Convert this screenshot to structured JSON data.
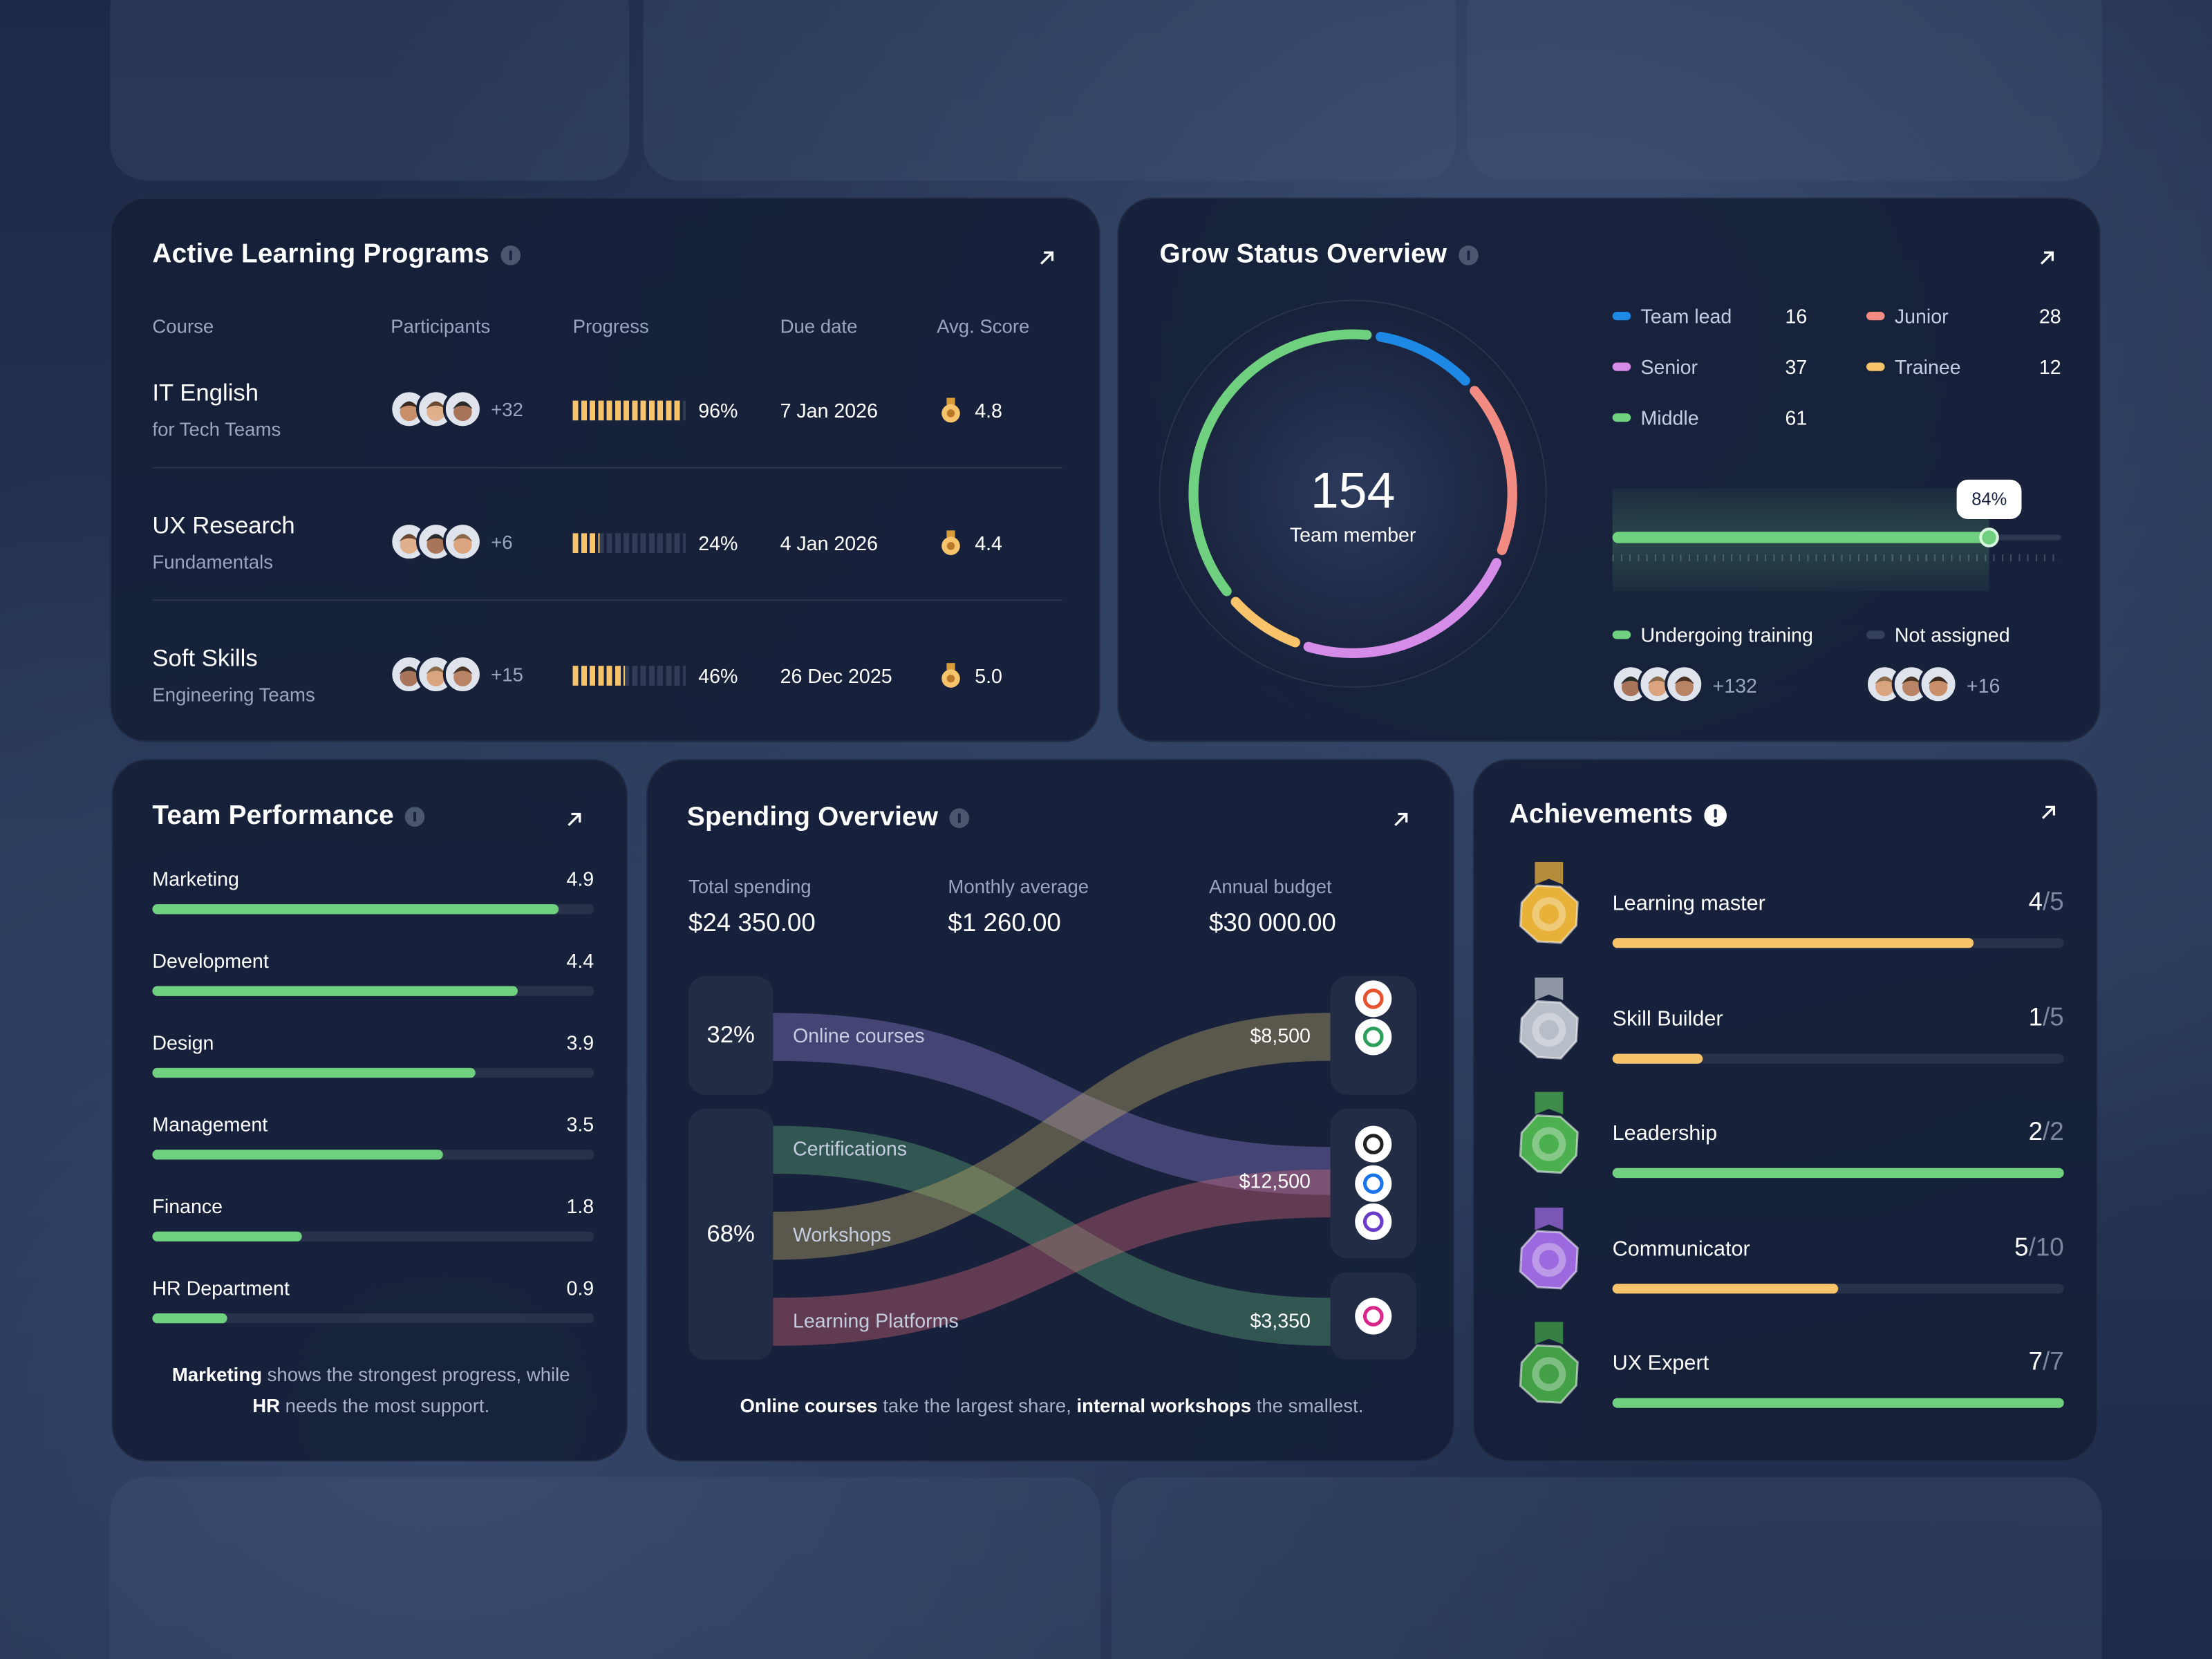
{
  "learning_programs": {
    "title": "Active Learning Programs",
    "columns": [
      "Course",
      "Participants",
      "Progress",
      "Due date",
      "Avg. Score"
    ],
    "rows": [
      {
        "course": "IT English",
        "subtitle": "for Tech Teams",
        "participants_extra": "+32",
        "progress": 96,
        "progress_label": "96%",
        "due_date": "7 Jan 2026",
        "avg_score": "4.8"
      },
      {
        "course": "UX Research",
        "subtitle": "Fundamentals",
        "participants_extra": "+6",
        "progress": 24,
        "progress_label": "24%",
        "due_date": "4 Jan 2026",
        "avg_score": "4.4"
      },
      {
        "course": "Soft Skills",
        "subtitle": "Engineering Teams",
        "participants_extra": "+15",
        "progress": 46,
        "progress_label": "46%",
        "due_date": "26 Dec 2025",
        "avg_score": "5.0"
      }
    ]
  },
  "grow_status": {
    "title": "Grow Status Overview",
    "total": 154,
    "total_label": "Team member",
    "groups": [
      {
        "name": "Team lead",
        "value": 16,
        "color": "#1e88e5"
      },
      {
        "name": "Junior",
        "value": 28,
        "color": "#f28b82"
      },
      {
        "name": "Senior",
        "value": 37,
        "color": "#d58ce8"
      },
      {
        "name": "Trainee",
        "value": 12,
        "color": "#f7c46c"
      },
      {
        "name": "Middle",
        "value": 61,
        "color": "#6fd07f"
      }
    ],
    "training_progress": 84,
    "training_progress_label": "84%",
    "assignment": [
      {
        "name": "Undergoing training",
        "extra": "+132",
        "color": "#6fd07f"
      },
      {
        "name": "Not assigned",
        "extra": "+16",
        "color": "#34405c"
      }
    ]
  },
  "team_performance": {
    "title": "Team Performance",
    "color": "#6fd07f",
    "departments": [
      {
        "name": "Marketing",
        "value": 4.9
      },
      {
        "name": "Development",
        "value": 4.4
      },
      {
        "name": "Design",
        "value": 3.9
      },
      {
        "name": "Management",
        "value": 3.5
      },
      {
        "name": "Finance",
        "value": 1.8
      },
      {
        "name": "HR Department",
        "value": 0.9
      }
    ],
    "summary": [
      {
        "text": "Marketing",
        "bold": true
      },
      {
        "text": " shows the strongest progress, while "
      },
      {
        "text": "HR",
        "bold": true
      },
      {
        "text": " needs the most support."
      }
    ]
  },
  "spending_overview": {
    "title": "Spending Overview",
    "stats": [
      {
        "label": "Total spending",
        "value": "$24 350.00"
      },
      {
        "label": "Monthly average",
        "value": "$1 260.00"
      },
      {
        "label": "Annual budget",
        "value": "$30 000.00"
      }
    ],
    "source_groups": [
      {
        "share": 32,
        "share_label": "32%",
        "sources": [
          {
            "name": "Online courses",
            "color": "#8d7fd6",
            "target": "$12,500"
          }
        ]
      },
      {
        "share": 68,
        "share_label": "68%",
        "sources": [
          {
            "name": "Certifications",
            "color": "#5fae7a",
            "target": "$3,350"
          },
          {
            "name": "Workshops",
            "color": "#c9b36a",
            "target": "$8,500"
          },
          {
            "name": "Learning Platforms",
            "color": "#d8667a",
            "target": "$12,500"
          }
        ]
      }
    ],
    "targets": [
      "$8,500",
      "$12,500",
      "$3,350"
    ],
    "summary": [
      {
        "text": "Online courses",
        "bold": true
      },
      {
        "text": " take the largest share, "
      },
      {
        "text": "internal workshops",
        "bold": true
      },
      {
        "text": " the smallest."
      }
    ]
  },
  "achievements": {
    "title": "Achievements",
    "separator": "/",
    "items": [
      {
        "name": "Learning master",
        "value": 4,
        "total": 5,
        "color": "#f7c46c",
        "medal": "#e8b13a"
      },
      {
        "name": "Skill Builder",
        "value": 1,
        "total": 5,
        "color": "#f7c46c",
        "medal": "#b8bec8"
      },
      {
        "name": "Leadership",
        "value": 2,
        "total": 2,
        "color": "#6fd07f",
        "medal": "#4caf50"
      },
      {
        "name": "Communicator",
        "value": 5,
        "total": 10,
        "color": "#f7c46c",
        "medal": "#9c6ade"
      },
      {
        "name": "UX Expert",
        "value": 7,
        "total": 7,
        "color": "#6fd07f",
        "medal": "#43a047"
      }
    ]
  }
}
